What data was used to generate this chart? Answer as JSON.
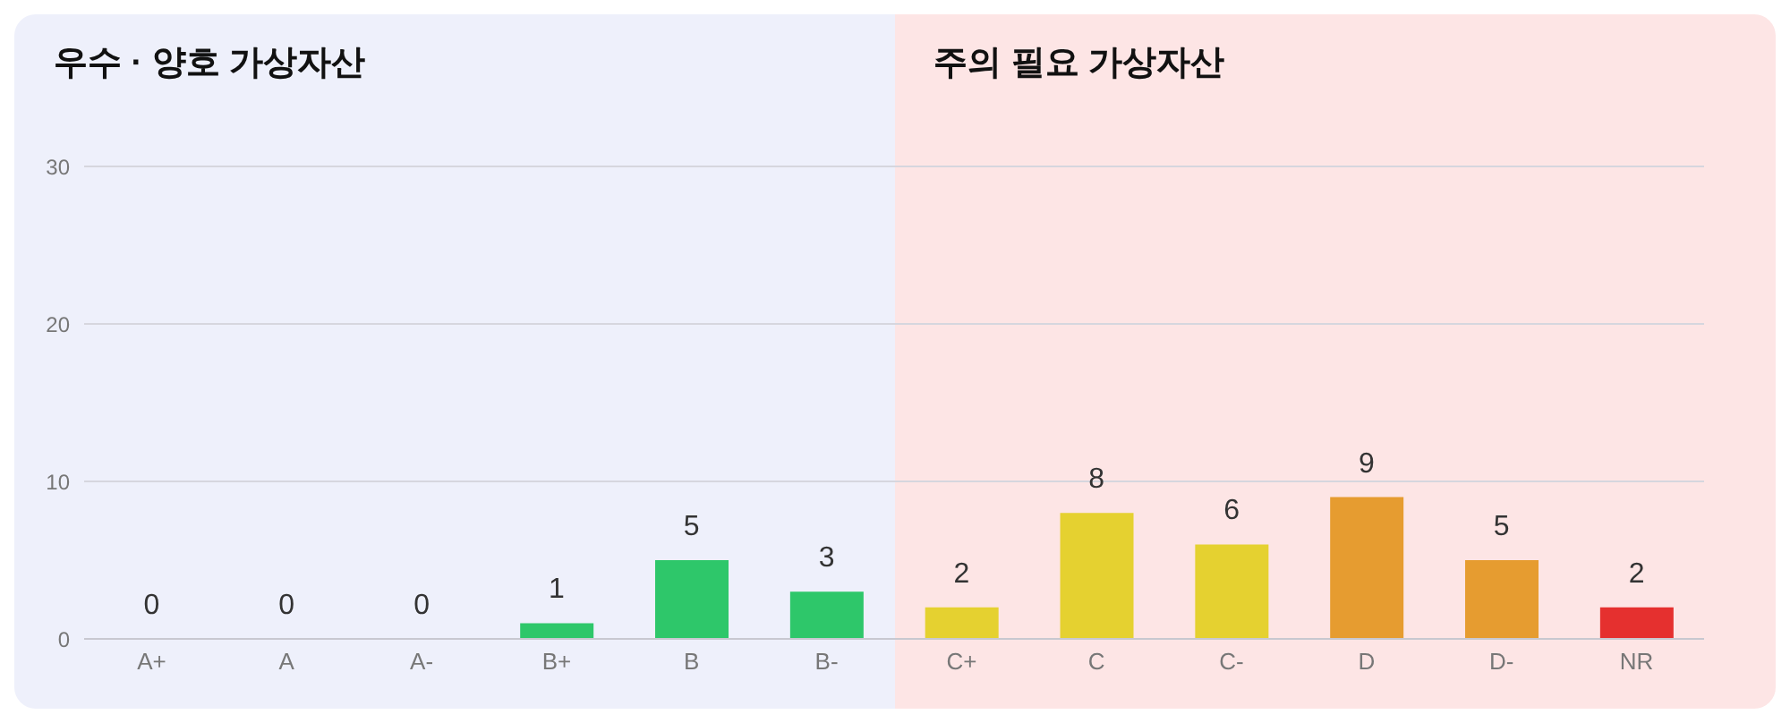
{
  "chart_data": {
    "type": "bar",
    "categories": [
      "A+",
      "A",
      "A-",
      "B+",
      "B",
      "B-",
      "C+",
      "C",
      "C-",
      "D",
      "D-",
      "NR"
    ],
    "values": [
      0,
      0,
      0,
      1,
      5,
      3,
      2,
      8,
      6,
      9,
      5,
      2
    ],
    "colors": [
      "#2ec76a",
      "#2ec76a",
      "#2ec76a",
      "#2ec76a",
      "#2ec76a",
      "#2ec76a",
      "#e5d130",
      "#e5d130",
      "#e5d130",
      "#e69c30",
      "#e69c30",
      "#e5302f"
    ],
    "ylim": [
      0,
      30
    ],
    "yticks": [
      0,
      10,
      20,
      30
    ],
    "grid": "y",
    "data_labels": true,
    "bands": [
      {
        "axis": "x",
        "from": "A+",
        "to": "B-",
        "label": "우수 · 양호 가상자산",
        "color": "#eef0fb"
      },
      {
        "axis": "x",
        "from": "C+",
        "to": "NR",
        "label": "주의 필요 가상자산",
        "color": "#fde5e5"
      }
    ]
  }
}
